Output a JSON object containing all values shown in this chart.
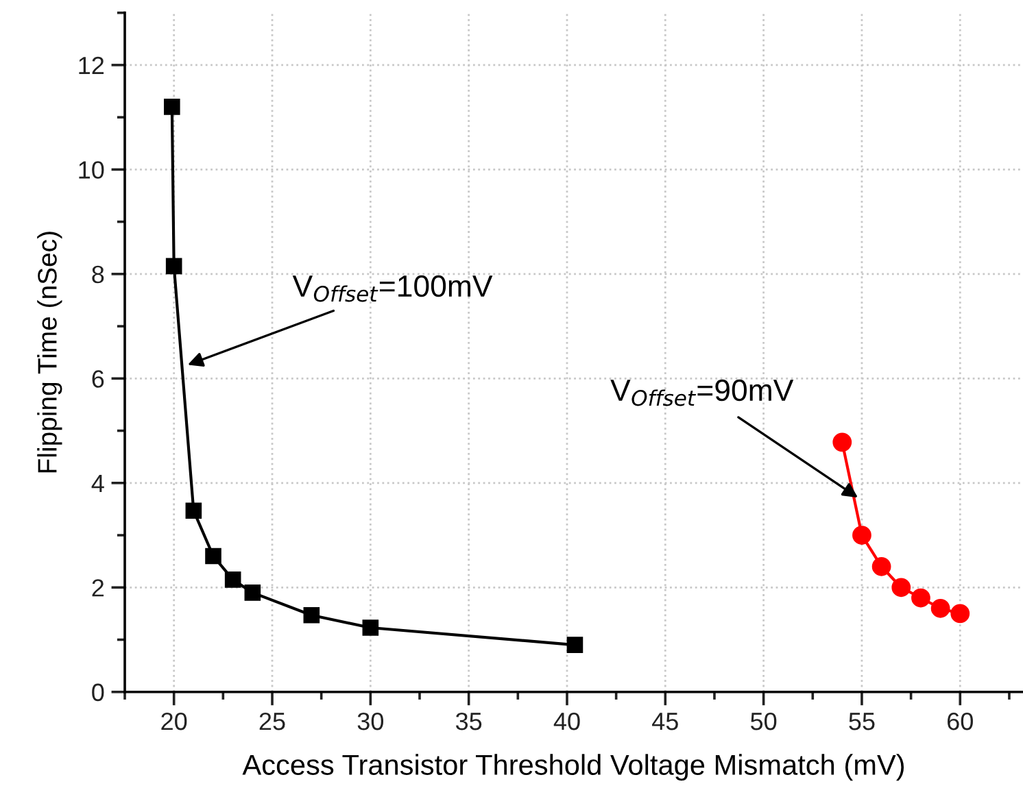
{
  "chart_data": {
    "type": "line",
    "xlabel": "Access Transistor Threshold Voltage Mismatch (mV)",
    "ylabel": "Flipping Time (nSec)",
    "xlim": [
      17.5,
      63.2
    ],
    "ylim": [
      0,
      13
    ],
    "xticks": [
      20,
      25,
      30,
      35,
      40,
      45,
      50,
      55,
      60
    ],
    "yticks": [
      0,
      2,
      4,
      6,
      8,
      10,
      12
    ],
    "grid": true,
    "line_style": "solid",
    "series": [
      {
        "color": "#000000",
        "marker": "square",
        "x": [
          19.9,
          20,
          21,
          22,
          23,
          24,
          27,
          30,
          40.4
        ],
        "values": [
          11.2,
          8.15,
          3.47,
          2.6,
          2.15,
          1.9,
          1.47,
          1.23,
          0.9
        ]
      },
      {
        "color": "#ff0000",
        "marker": "circle",
        "x": [
          54,
          55,
          56,
          57,
          58,
          59,
          60
        ],
        "values": [
          4.78,
          3.0,
          2.4,
          2.0,
          1.8,
          1.6,
          1.5
        ]
      }
    ],
    "annotations": [
      {
        "text": "V$_{Offset}$=100mV",
        "x": 20.7,
        "y": 6.26
      },
      {
        "text": "V$_{Offset}$=90mV",
        "x": 54.8,
        "y": 3.72
      }
    ]
  }
}
